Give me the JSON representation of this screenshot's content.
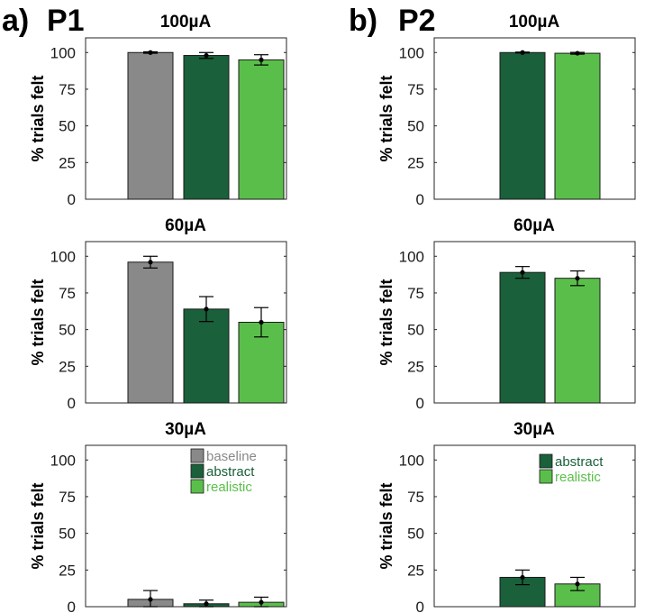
{
  "panels": [
    {
      "letter": "a)",
      "name": "P1"
    },
    {
      "letter": "b)",
      "name": "P2"
    }
  ],
  "colors": {
    "baseline": "#898989",
    "abstract": "#19603b",
    "realistic": "#5abf4a"
  },
  "chart_data": [
    {
      "type": "bar",
      "panel": "P1",
      "title": "100µA",
      "ylabel": "% trials felt",
      "ylim": [
        0,
        110
      ],
      "yticks": [
        "0",
        "25",
        "50",
        "75",
        "100"
      ],
      "categories": [
        "baseline",
        "abstract",
        "realistic"
      ],
      "values": [
        100,
        98,
        95
      ],
      "errors": [
        0.5,
        2,
        3.5
      ],
      "legend": null
    },
    {
      "type": "bar",
      "panel": "P1",
      "title": "60µA",
      "ylabel": "% trials felt",
      "ylim": [
        0,
        110
      ],
      "yticks": [
        "0",
        "25",
        "50",
        "75",
        "100"
      ],
      "categories": [
        "baseline",
        "abstract",
        "realistic"
      ],
      "values": [
        96,
        64,
        55
      ],
      "errors": [
        4,
        8.5,
        10
      ],
      "legend": null
    },
    {
      "type": "bar",
      "panel": "P1",
      "title": "30µA",
      "ylabel": "% trials felt",
      "ylim": [
        0,
        110
      ],
      "yticks": [
        "0",
        "25",
        "50",
        "75",
        "100"
      ],
      "categories": [
        "baseline",
        "abstract",
        "realistic"
      ],
      "values": [
        5,
        2,
        3
      ],
      "errors": [
        6,
        2.5,
        3.5
      ],
      "legend": [
        "baseline",
        "abstract",
        "realistic"
      ]
    },
    {
      "type": "bar",
      "panel": "P2",
      "title": "100µA",
      "ylabel": "% trials felt",
      "ylim": [
        0,
        110
      ],
      "yticks": [
        "0",
        "25",
        "50",
        "75",
        "100"
      ],
      "categories": [
        "abstract",
        "realistic"
      ],
      "values": [
        100,
        99.5
      ],
      "errors": [
        0.3,
        0.6
      ],
      "legend": null
    },
    {
      "type": "bar",
      "panel": "P2",
      "title": "60µA",
      "ylabel": "% trials felt",
      "ylim": [
        0,
        110
      ],
      "yticks": [
        "0",
        "25",
        "50",
        "75",
        "100"
      ],
      "categories": [
        "abstract",
        "realistic"
      ],
      "values": [
        89,
        85
      ],
      "errors": [
        4,
        5
      ],
      "legend": null
    },
    {
      "type": "bar",
      "panel": "P2",
      "title": "30µA",
      "ylabel": "% trials felt",
      "ylim": [
        0,
        110
      ],
      "yticks": [
        "0",
        "25",
        "50",
        "75",
        "100"
      ],
      "categories": [
        "abstract",
        "realistic"
      ],
      "values": [
        20,
        15.5
      ],
      "errors": [
        5,
        4.5
      ],
      "legend": [
        "abstract",
        "realistic"
      ]
    }
  ]
}
